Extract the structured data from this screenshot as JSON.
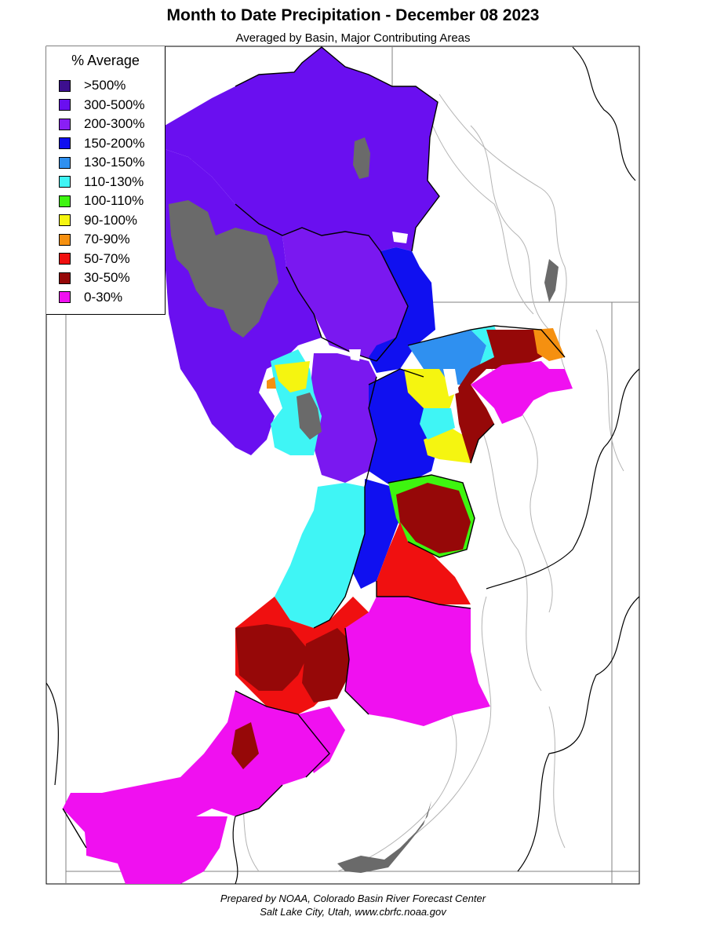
{
  "title": "Month to Date Precipitation - December 08 2023",
  "subtitle": "Averaged by Basin, Major Contributing Areas",
  "legend": {
    "title": "% Average",
    "items": [
      {
        "label": ">500%",
        "color": "#3d0f8f"
      },
      {
        "label": "300-500%",
        "color": "#6a0ff0"
      },
      {
        "label": "200-300%",
        "color": "#8a1ff5"
      },
      {
        "label": "150-200%",
        "color": "#1010f0"
      },
      {
        "label": "130-150%",
        "color": "#2f90f0"
      },
      {
        "label": "110-130%",
        "color": "#3ff5f5"
      },
      {
        "label": "100-110%",
        "color": "#3ef510"
      },
      {
        "label": "90-100%",
        "color": "#f5f510"
      },
      {
        "label": "70-90%",
        "color": "#f59010"
      },
      {
        "label": "50-70%",
        "color": "#f01010"
      },
      {
        "label": "30-50%",
        "color": "#960808"
      },
      {
        "label": "0-30%",
        "color": "#f010f0"
      }
    ]
  },
  "map": {
    "lake_color": "#6a6a6a",
    "boundary_color": "#000000",
    "river_color": "#a0a0a0"
  },
  "footer": {
    "line1": "Prepared by NOAA, Colorado Basin River Forecast Center",
    "line2": "Salt Lake City, Utah, www.cbrfc.noaa.gov"
  }
}
